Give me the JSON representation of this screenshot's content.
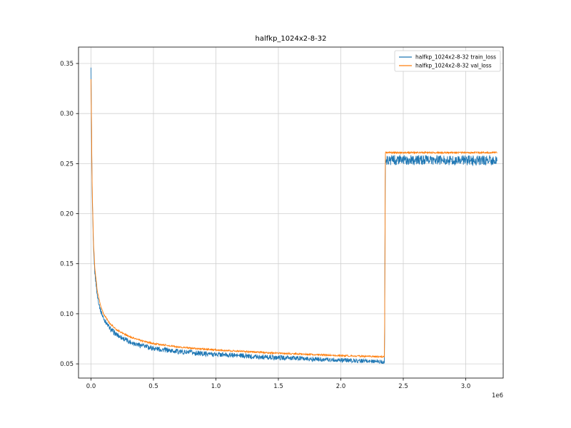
{
  "figure": {
    "background": "#ffffff"
  },
  "chart_data": {
    "type": "line",
    "title": "halfkp_1024x2-8-32",
    "xlabel": "",
    "ylabel": "",
    "x_offset_text": "1e6",
    "xlim": [
      -100000,
      3300000
    ],
    "ylim": [
      0.0358,
      0.3664
    ],
    "x_ticks": [
      0,
      500000,
      1000000,
      1500000,
      2000000,
      2500000,
      3000000
    ],
    "x_tick_labels": [
      "0.0",
      "0.5",
      "1.0",
      "1.5",
      "2.0",
      "2.5",
      "3.0"
    ],
    "y_ticks": [
      0.05,
      0.1,
      0.15,
      0.2,
      0.25,
      0.3,
      0.35
    ],
    "y_tick_labels": [
      "0.05",
      "0.10",
      "0.15",
      "0.20",
      "0.25",
      "0.30",
      "0.35"
    ],
    "grid": true,
    "grid_color": "#d0d0d0",
    "spine_color": "#000000",
    "tick_label_color": "#1a1a1a",
    "legend": {
      "position": "upper right",
      "border_color": "#cccccc",
      "background": "#ffffff"
    },
    "series": [
      {
        "name": "halfkp_1024x2-8-32 train_loss",
        "color": "#1f77b4",
        "keypoints": [
          [
            0,
            0.345
          ],
          [
            5000,
            0.27
          ],
          [
            10000,
            0.215
          ],
          [
            20000,
            0.165
          ],
          [
            30000,
            0.142
          ],
          [
            50000,
            0.118
          ],
          [
            75000,
            0.104
          ],
          [
            100000,
            0.0955
          ],
          [
            150000,
            0.0855
          ],
          [
            200000,
            0.0795
          ],
          [
            300000,
            0.0725
          ],
          [
            400000,
            0.0685
          ],
          [
            500000,
            0.0655
          ],
          [
            700000,
            0.0622
          ],
          [
            900000,
            0.0602
          ],
          [
            1100000,
            0.0588
          ],
          [
            1400000,
            0.0568
          ],
          [
            1700000,
            0.0552
          ],
          [
            2000000,
            0.0538
          ],
          [
            2200000,
            0.0528
          ],
          [
            2350000,
            0.052
          ],
          [
            2356000,
            0.2535
          ],
          [
            2700000,
            0.2535
          ],
          [
            3000000,
            0.2532
          ],
          [
            3250000,
            0.253
          ]
        ],
        "noise": [
          [
            0,
            0.0015
          ],
          [
            50000,
            0.0022
          ],
          [
            200000,
            0.0026
          ],
          [
            1500000,
            0.0024
          ],
          [
            2350000,
            0.002
          ],
          [
            2356000,
            0.005
          ],
          [
            3250000,
            0.005
          ]
        ]
      },
      {
        "name": "halfkp_1024x2-8-32 val_loss",
        "color": "#ff7f0e",
        "keypoints": [
          [
            0,
            0.335
          ],
          [
            5000,
            0.275
          ],
          [
            10000,
            0.22
          ],
          [
            20000,
            0.17
          ],
          [
            30000,
            0.147
          ],
          [
            50000,
            0.123
          ],
          [
            75000,
            0.109
          ],
          [
            100000,
            0.1
          ],
          [
            150000,
            0.0905
          ],
          [
            200000,
            0.0845
          ],
          [
            300000,
            0.0775
          ],
          [
            400000,
            0.0732
          ],
          [
            500000,
            0.0702
          ],
          [
            700000,
            0.0668
          ],
          [
            900000,
            0.0647
          ],
          [
            1100000,
            0.0632
          ],
          [
            1400000,
            0.0612
          ],
          [
            1700000,
            0.0597
          ],
          [
            2000000,
            0.0583
          ],
          [
            2200000,
            0.0575
          ],
          [
            2350000,
            0.057
          ],
          [
            2356000,
            0.261
          ],
          [
            3250000,
            0.261
          ]
        ],
        "noise": [
          [
            0,
            0.0008
          ],
          [
            3250000,
            0.0008
          ]
        ]
      }
    ]
  }
}
